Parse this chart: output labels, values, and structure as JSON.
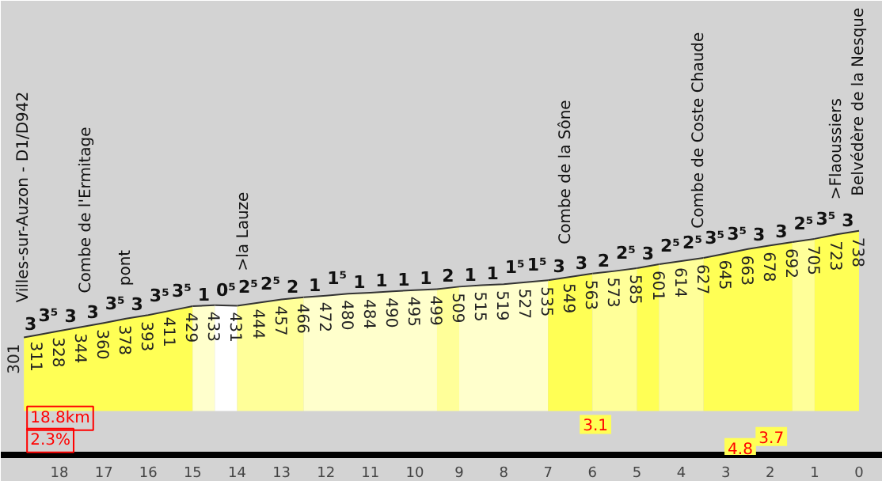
{
  "chart_data": {
    "type": "area",
    "series": [
      {
        "color": "#ffff55",
        "x": [
          18.8,
          18.5,
          18,
          17.5,
          17,
          16.5,
          16,
          15.5,
          15
        ],
        "values": [
          301,
          311,
          328,
          344,
          360,
          378,
          393,
          411,
          429
        ],
        "value_labels": [
          "301",
          "311",
          "328",
          "344",
          "360",
          "378",
          "393",
          "411",
          "429"
        ]
      },
      {
        "color": "#ffffcc",
        "x": [
          15,
          14.5
        ],
        "values": [
          429,
          433
        ],
        "value_labels": [
          null,
          "433"
        ]
      },
      {
        "color": "#ffffff",
        "x": [
          14.5,
          14
        ],
        "values": [
          433,
          431
        ],
        "value_labels": [
          null,
          "431"
        ]
      },
      {
        "color": "#ffff99",
        "x": [
          14,
          13.5,
          13,
          12.5
        ],
        "values": [
          431,
          444,
          457,
          466
        ],
        "value_labels": [
          null,
          "444",
          "457",
          "466"
        ]
      },
      {
        "color": "#ffffcc",
        "x": [
          12.5,
          12,
          11.5,
          11,
          10.5,
          10,
          9.5
        ],
        "values": [
          466,
          472,
          480,
          484,
          490,
          495,
          499
        ],
        "value_labels": [
          null,
          "472",
          "480",
          "484",
          "490",
          "495",
          "499"
        ]
      },
      {
        "color": "#ffff99",
        "x": [
          9.5,
          9
        ],
        "values": [
          499,
          509
        ],
        "value_labels": [
          null,
          "509"
        ]
      },
      {
        "color": "#ffffcc",
        "x": [
          9,
          8.5,
          8,
          7.5,
          7
        ],
        "values": [
          509,
          515,
          519,
          527,
          535
        ],
        "value_labels": [
          null,
          "515",
          "519",
          "527",
          "535"
        ]
      },
      {
        "color": "#ffff55",
        "x": [
          7,
          6.5,
          6
        ],
        "values": [
          535,
          549,
          563
        ],
        "value_labels": [
          null,
          "549",
          "563"
        ]
      },
      {
        "color": "#ffff99",
        "x": [
          6,
          5.5,
          5
        ],
        "values": [
          563,
          573,
          585
        ],
        "value_labels": [
          null,
          "573",
          "585"
        ]
      },
      {
        "color": "#ffff55",
        "x": [
          5,
          4.5
        ],
        "values": [
          585,
          601
        ],
        "value_labels": [
          null,
          "601"
        ]
      },
      {
        "color": "#ffff99",
        "x": [
          4.5,
          4,
          3.5
        ],
        "values": [
          601,
          614,
          627
        ],
        "value_labels": [
          null,
          "614",
          "627"
        ]
      },
      {
        "color": "#ffff55",
        "x": [
          3.5,
          3,
          2.5,
          2,
          1.5
        ],
        "values": [
          627,
          645,
          663,
          678,
          692
        ],
        "value_labels": [
          null,
          "645",
          "663",
          "678",
          "692"
        ]
      },
      {
        "color": "#ffff99",
        "x": [
          1.5,
          1
        ],
        "values": [
          692,
          705
        ],
        "value_labels": [
          null,
          "705"
        ]
      },
      {
        "color": "#ffff55",
        "x": [
          1,
          0.5,
          0
        ],
        "values": [
          705,
          723,
          738
        ],
        "value_labels": [
          null,
          "723",
          "738"
        ]
      }
    ],
    "xlim": [
      19.32,
      -0.535
    ],
    "xticks": [
      0,
      1,
      2,
      3,
      4,
      5,
      6,
      7,
      8,
      9,
      10,
      11,
      12,
      13,
      14,
      15,
      16,
      17,
      18
    ],
    "ylim": [
      -180,
      1680
    ],
    "tick_labels": "x",
    "grid": false,
    "annotations": [
      {
        "text": "3",
        "x": 18.65,
        "y": 311
      },
      {
        "text": "3⁵",
        "x": 18.25,
        "y": 328
      },
      {
        "text": "3",
        "x": 17.75,
        "y": 344
      },
      {
        "text": "3",
        "x": 17.25,
        "y": 360
      },
      {
        "text": "3⁵",
        "x": 16.75,
        "y": 378
      },
      {
        "text": "3",
        "x": 16.25,
        "y": 393
      },
      {
        "text": "3⁵",
        "x": 15.75,
        "y": 411
      },
      {
        "text": "3⁵",
        "x": 15.25,
        "y": 429
      },
      {
        "text": "1",
        "x": 14.75,
        "y": 433
      },
      {
        "text": "0⁵",
        "x": 14.25,
        "y": 433
      },
      {
        "text": "2⁵",
        "x": 13.75,
        "y": 444
      },
      {
        "text": "2⁵",
        "x": 13.25,
        "y": 457
      },
      {
        "text": "2",
        "x": 12.75,
        "y": 466
      },
      {
        "text": "1",
        "x": 12.25,
        "y": 472
      },
      {
        "text": "1⁵",
        "x": 11.75,
        "y": 480
      },
      {
        "text": "1",
        "x": 11.25,
        "y": 484
      },
      {
        "text": "1",
        "x": 10.75,
        "y": 490
      },
      {
        "text": "1",
        "x": 10.25,
        "y": 495
      },
      {
        "text": "1",
        "x": 9.75,
        "y": 499
      },
      {
        "text": "2",
        "x": 9.25,
        "y": 509
      },
      {
        "text": "1",
        "x": 8.75,
        "y": 515
      },
      {
        "text": "1",
        "x": 8.25,
        "y": 519
      },
      {
        "text": "1⁵",
        "x": 7.75,
        "y": 527
      },
      {
        "text": "1⁵",
        "x": 7.25,
        "y": 535
      },
      {
        "text": "3",
        "x": 6.75,
        "y": 549
      },
      {
        "text": "3",
        "x": 6.25,
        "y": 563
      },
      {
        "text": "2",
        "x": 5.75,
        "y": 573
      },
      {
        "text": "2⁵",
        "x": 5.25,
        "y": 585
      },
      {
        "text": "3",
        "x": 4.75,
        "y": 601
      },
      {
        "text": "2⁵",
        "x": 4.25,
        "y": 614
      },
      {
        "text": "2⁵",
        "x": 3.75,
        "y": 627
      },
      {
        "text": "3⁵",
        "x": 3.25,
        "y": 645
      },
      {
        "text": "3⁵",
        "x": 2.75,
        "y": 663
      },
      {
        "text": "3",
        "x": 2.25,
        "y": 678
      },
      {
        "text": "3",
        "x": 1.75,
        "y": 692
      },
      {
        "text": "2⁵",
        "x": 1.25,
        "y": 705
      },
      {
        "text": "3⁵",
        "x": 0.75,
        "y": 723
      },
      {
        "text": "3",
        "x": 0.25,
        "y": 738
      },
      {
        "text": "Villes-sur-Auzon - D1/D942",
        "x": 18.8,
        "y": 301
      },
      {
        "text": "Combe de l'Ermitage",
        "x": 17.4,
        "y": 340
      },
      {
        "text": "pont",
        "x": 16.5,
        "y": 370
      },
      {
        "text": ">la Lauze",
        "x": 13.85,
        "y": 431
      },
      {
        "text": "Combe de la Sône",
        "x": 6.6,
        "y": 540
      },
      {
        "text": "Combe de Coste Chaude",
        "x": 3.6,
        "y": 605
      },
      {
        "text": ">Flaoussiers",
        "x": 0.5,
        "y": 723
      },
      {
        "text": "Belvédère de la Nesque",
        "x": 0,
        "y": 738
      },
      "18.8km",
      "2.3%",
      "3.1",
      "3.7",
      "4.8"
    ]
  }
}
